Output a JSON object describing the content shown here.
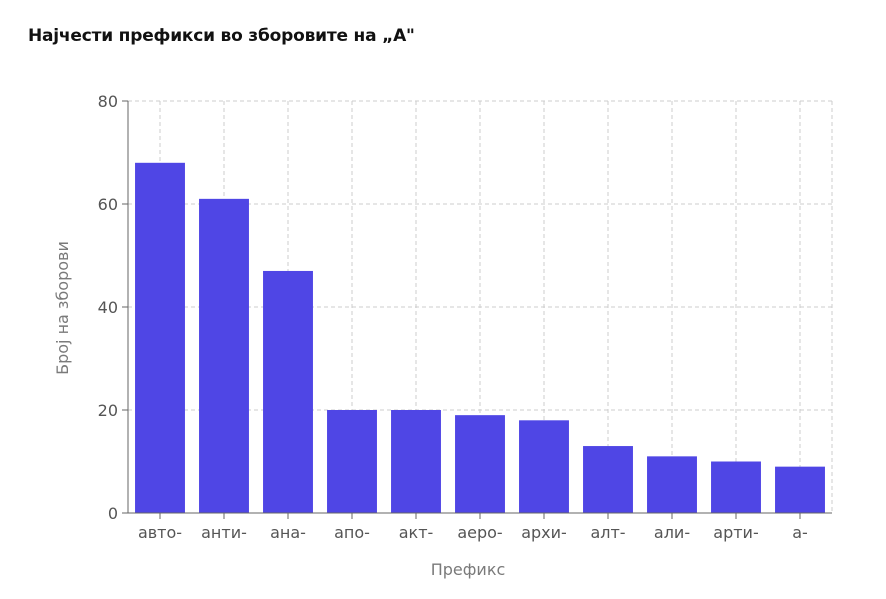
{
  "colors": {
    "bar": "#4f46e5",
    "grid": "#cccccc",
    "axis": "#666666"
  },
  "chart_data": {
    "type": "bar",
    "title": "Најчести префикси во зборовите на „А\"",
    "xlabel": "Префикс",
    "ylabel": "Број на зборови",
    "categories": [
      "авто-",
      "анти-",
      "ана-",
      "апо-",
      "акт-",
      "аеро-",
      "архи-",
      "алт-",
      "али-",
      "арти-",
      "а-"
    ],
    "values": [
      68,
      61,
      47,
      20,
      20,
      19,
      18,
      13,
      11,
      10,
      9
    ],
    "ylim": [
      0,
      80
    ],
    "yticks": [
      0,
      20,
      40,
      60,
      80
    ],
    "grid": true,
    "legend": "none"
  }
}
